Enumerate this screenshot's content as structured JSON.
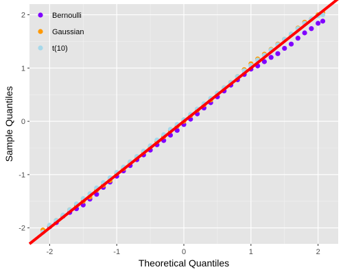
{
  "chart_data": {
    "type": "scatter",
    "title": "",
    "xlabel": "Theoretical Quantiles",
    "ylabel": "Sample Quantiles",
    "xlim": [
      -2.3,
      2.3
    ],
    "ylim": [
      -2.3,
      2.2
    ],
    "x_ticks": [
      -2,
      -1,
      0,
      1,
      2
    ],
    "y_ticks": [
      -2,
      -1,
      0,
      1,
      2
    ],
    "x_tick_labels": [
      "-2",
      "-1",
      "0",
      "1",
      "2"
    ],
    "y_tick_labels": [
      "-2",
      "-1",
      "0",
      "1",
      "2"
    ],
    "grid": true,
    "panel_background": "#e5e5e5",
    "legend_position": "top-left",
    "reference_line": {
      "slope": 1.0,
      "intercept": 0.0,
      "color": "#ff0000"
    },
    "series": [
      {
        "name": "Bernoulli",
        "color": "#8000ff",
        "x": [
          -2.1,
          -2.0,
          -1.9,
          -1.8,
          -1.7,
          -1.6,
          -1.5,
          -1.4,
          -1.3,
          -1.2,
          -1.1,
          -1.0,
          -0.9,
          -0.8,
          -0.7,
          -0.6,
          -0.5,
          -0.4,
          -0.3,
          -0.2,
          -0.1,
          0.0,
          0.1,
          0.2,
          0.3,
          0.4,
          0.5,
          0.6,
          0.7,
          0.8,
          0.9,
          1.0,
          1.1,
          1.2,
          1.3,
          1.4,
          1.5,
          1.6,
          1.7,
          1.8,
          1.9,
          2.0,
          2.07
        ],
        "y": [
          -2.08,
          -1.98,
          -1.9,
          -1.78,
          -1.71,
          -1.64,
          -1.57,
          -1.46,
          -1.37,
          -1.24,
          -1.14,
          -1.03,
          -0.93,
          -0.83,
          -0.72,
          -0.63,
          -0.54,
          -0.44,
          -0.36,
          -0.26,
          -0.17,
          -0.06,
          0.04,
          0.14,
          0.25,
          0.35,
          0.46,
          0.57,
          0.68,
          0.78,
          0.88,
          0.98,
          1.04,
          1.12,
          1.2,
          1.27,
          1.37,
          1.45,
          1.56,
          1.66,
          1.74,
          1.84,
          1.88
        ]
      },
      {
        "name": "Gaussian",
        "color": "#ff9900",
        "x": [
          -2.1,
          -2.0,
          -1.9,
          -1.8,
          -1.7,
          -1.6,
          -1.5,
          -1.4,
          -1.3,
          -1.2,
          -1.1,
          -1.0,
          -0.9,
          -0.8,
          -0.7,
          -0.6,
          -0.5,
          -0.4,
          -0.3,
          -0.2,
          -0.1,
          0.0,
          0.1,
          0.2,
          0.3,
          0.4,
          0.5,
          0.6,
          0.7,
          0.8,
          0.9,
          1.0,
          1.1,
          1.2,
          1.3,
          1.4,
          1.5,
          1.6,
          1.7,
          1.8,
          1.9,
          2.0,
          2.07
        ],
        "y": [
          -2.04,
          -1.96,
          -1.86,
          -1.77,
          -1.66,
          -1.58,
          -1.5,
          -1.42,
          -1.29,
          -1.2,
          -1.11,
          -0.98,
          -0.89,
          -0.77,
          -0.67,
          -0.58,
          -0.48,
          -0.38,
          -0.29,
          -0.18,
          -0.09,
          0.0,
          0.11,
          0.21,
          0.31,
          0.4,
          0.52,
          0.63,
          0.73,
          0.84,
          0.97,
          1.08,
          1.17,
          1.26,
          1.35,
          1.45,
          1.54,
          1.63,
          1.75,
          1.86,
          1.92,
          2.0,
          2.04
        ]
      },
      {
        "name": "t(10)",
        "color": "#a6d8ea",
        "x": [
          -2.1,
          -2.0,
          -1.9,
          -1.8,
          -1.7,
          -1.6,
          -1.5,
          -1.4,
          -1.3,
          -1.2,
          -1.1,
          -1.0,
          -0.9,
          -0.8,
          -0.7,
          -0.6,
          -0.5,
          -0.4,
          -0.3,
          -0.2,
          -0.1,
          0.0,
          0.1,
          0.2,
          0.3,
          0.4,
          0.5,
          0.6,
          0.7,
          0.8,
          0.9,
          1.0,
          1.1,
          1.2,
          1.3,
          1.4,
          1.5,
          1.6,
          1.7,
          1.8,
          1.9,
          2.0,
          2.07
        ],
        "y": [
          -2.08,
          -1.95,
          -1.86,
          -1.76,
          -1.66,
          -1.55,
          -1.45,
          -1.36,
          -1.25,
          -1.15,
          -1.06,
          -0.96,
          -0.86,
          -0.76,
          -0.66,
          -0.56,
          -0.46,
          -0.35,
          -0.25,
          -0.15,
          -0.06,
          0.03,
          0.13,
          0.23,
          0.33,
          0.43,
          0.53,
          0.63,
          0.73,
          0.84,
          0.95,
          1.05,
          1.15,
          1.24,
          1.34,
          1.44,
          1.54,
          1.64,
          1.74,
          1.84,
          1.92,
          1.98,
          2.0
        ]
      }
    ]
  }
}
